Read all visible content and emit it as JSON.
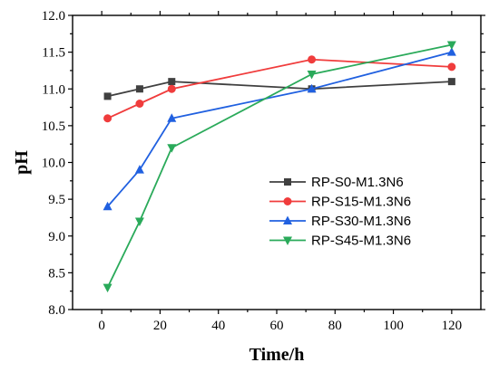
{
  "chart_data": {
    "type": "line",
    "xlabel": "Time/h",
    "ylabel": "pH",
    "xlim": [
      -10,
      130
    ],
    "ylim": [
      8.0,
      12.0
    ],
    "xticks": [
      "0",
      "20",
      "40",
      "60",
      "80",
      "100",
      "120"
    ],
    "yticks": [
      "8.0",
      "8.5",
      "9.0",
      "9.5",
      "10.0",
      "10.5",
      "11.0",
      "11.5",
      "12.0"
    ],
    "grid": false,
    "legend_position": "center-right",
    "series": [
      {
        "name": "RP-S0-M1.3N6",
        "color": "#404040",
        "marker": "square",
        "points": [
          [
            2,
            10.9
          ],
          [
            13,
            11.0
          ],
          [
            24,
            11.1
          ],
          [
            72,
            11.0
          ],
          [
            120,
            11.1
          ]
        ]
      },
      {
        "name": "RP-S15-M1.3N6",
        "color": "#f03c3c",
        "marker": "circle",
        "points": [
          [
            2,
            10.6
          ],
          [
            13,
            10.8
          ],
          [
            24,
            11.0
          ],
          [
            72,
            11.4
          ],
          [
            120,
            11.3
          ]
        ]
      },
      {
        "name": "RP-S30-M1.3N6",
        "color": "#2060e0",
        "marker": "triangle-up",
        "points": [
          [
            2,
            9.4
          ],
          [
            13,
            9.9
          ],
          [
            24,
            10.6
          ],
          [
            72,
            11.0
          ],
          [
            120,
            11.5
          ]
        ]
      },
      {
        "name": "RP-S45-M1.3N6",
        "color": "#2aaa5a",
        "marker": "triangle-down",
        "points": [
          [
            2,
            8.3
          ],
          [
            13,
            9.2
          ],
          [
            24,
            10.2
          ],
          [
            72,
            11.2
          ],
          [
            120,
            11.6
          ]
        ]
      }
    ]
  }
}
